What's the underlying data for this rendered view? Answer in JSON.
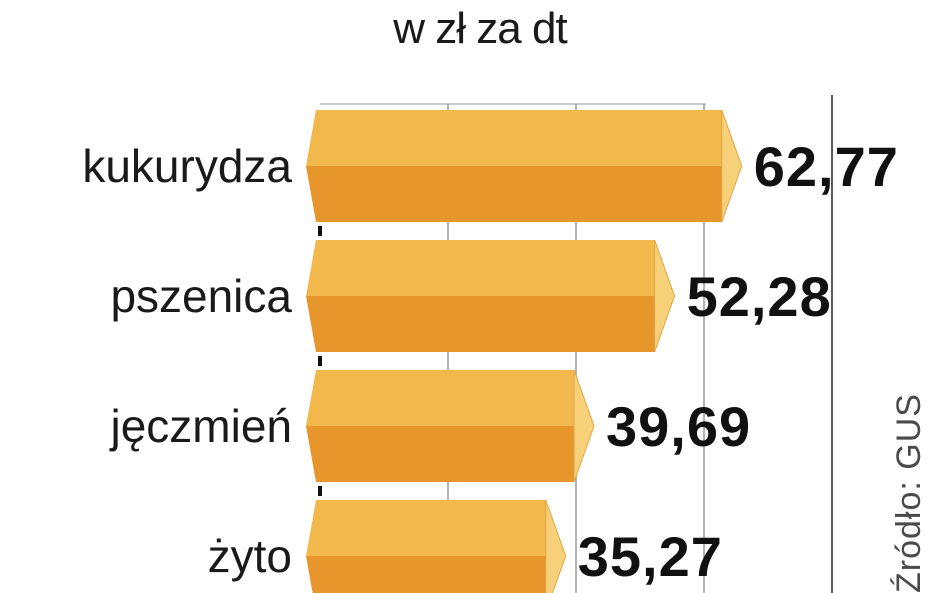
{
  "chart_data": {
    "type": "bar",
    "orientation": "horizontal",
    "subtitle": "w zł za dt",
    "categories": [
      "kukurydza",
      "pszenica",
      "jęczmień",
      "żyto"
    ],
    "values": [
      62.77,
      52.28,
      39.69,
      35.27
    ],
    "value_labels": [
      "62,77",
      "52,28",
      "39,69",
      "35,27"
    ],
    "xlim": [
      0,
      80
    ],
    "grid": true,
    "source": "Źródło: GUS"
  },
  "colors": {
    "bar_top": "#F2B84B",
    "bar_bottom": "#E6962A",
    "bar_tip": "#F7D07A",
    "grid": "#9a9a9a"
  }
}
